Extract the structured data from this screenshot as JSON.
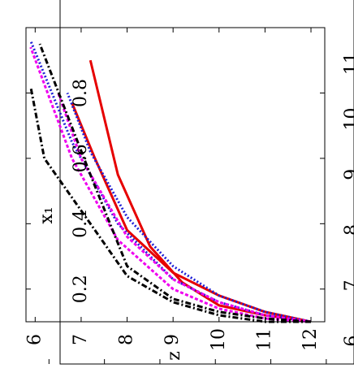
{
  "chart_data": [
    {
      "type": "line",
      "title": "",
      "xlabel": "x₁",
      "ylabel": "z",
      "x_ticks": [
        "0.2",
        "0.4",
        "0.6",
        "0.8"
      ],
      "y_ticks": [
        "6",
        "7",
        "8",
        "9",
        "10",
        "11",
        "12"
      ],
      "xlim": [
        0.1,
        1.0
      ],
      "ylim": [
        5.8,
        12.3
      ],
      "grid": false,
      "series": [
        {
          "color": "#e60000",
          "dash": "solid",
          "points": [
            [
              0.1,
              12.0
            ],
            [
              0.13,
              11.0
            ],
            [
              0.18,
              10.0
            ],
            [
              0.25,
              9.0
            ],
            [
              0.38,
              8.0
            ],
            [
              0.6,
              7.3
            ],
            [
              0.77,
              6.8
            ]
          ]
        },
        {
          "color": "#e60000",
          "dash": "solid",
          "points": [
            [
              0.1,
              12.0
            ],
            [
              0.12,
              11.0
            ],
            [
              0.15,
              10.0
            ],
            [
              0.22,
              9.2
            ],
            [
              0.33,
              8.5
            ],
            [
              0.55,
              7.8
            ],
            [
              0.9,
              7.2
            ]
          ]
        },
        {
          "color": "#1f1fd6",
          "dash": "dotted",
          "points": [
            [
              0.1,
              12.0
            ],
            [
              0.13,
              11.0
            ],
            [
              0.18,
              10.0
            ],
            [
              0.27,
              9.0
            ],
            [
              0.42,
              8.0
            ],
            [
              0.62,
              7.2
            ],
            [
              0.8,
              6.7
            ]
          ]
        },
        {
          "color": "#1f1fd6",
          "dash": "dotted",
          "points": [
            [
              0.1,
              12.0
            ],
            [
              0.12,
              11.0
            ],
            [
              0.16,
              10.0
            ],
            [
              0.23,
              9.0
            ],
            [
              0.4,
              7.8
            ],
            [
              0.65,
              6.8
            ],
            [
              0.96,
              5.9
            ]
          ]
        },
        {
          "color": "#ee00ee",
          "dash": "dashed",
          "points": [
            [
              0.1,
              12.0
            ],
            [
              0.12,
              11.0
            ],
            [
              0.16,
              10.0
            ],
            [
              0.23,
              9.0
            ],
            [
              0.36,
              8.0
            ],
            [
              0.6,
              7.0
            ],
            [
              0.8,
              6.5
            ]
          ]
        },
        {
          "color": "#ee00ee",
          "dash": "dashed",
          "points": [
            [
              0.1,
              12.0
            ],
            [
              0.11,
              11.0
            ],
            [
              0.14,
              10.0
            ],
            [
              0.2,
              9.0
            ],
            [
              0.35,
              7.8
            ],
            [
              0.6,
              6.8
            ],
            [
              0.94,
              5.9
            ]
          ]
        },
        {
          "color": "#000000",
          "dash": "dashdot",
          "points": [
            [
              0.1,
              12.0
            ],
            [
              0.11,
              11.0
            ],
            [
              0.13,
              10.0
            ],
            [
              0.17,
              9.0
            ],
            [
              0.27,
              8.0
            ],
            [
              0.55,
              7.2
            ],
            [
              0.95,
              6.1
            ]
          ]
        },
        {
          "color": "#000000",
          "dash": "dashdot",
          "points": [
            [
              0.1,
              12.0
            ],
            [
              0.1,
              11.0
            ],
            [
              0.12,
              10.0
            ],
            [
              0.16,
              9.0
            ],
            [
              0.24,
              8.0
            ],
            [
              0.4,
              7.2
            ],
            [
              0.6,
              6.2
            ],
            [
              0.82,
              5.9
            ]
          ]
        }
      ]
    },
    {
      "type": "line",
      "title": "",
      "y_ticks": [
        "6",
        "7",
        "8",
        "9",
        "10",
        "11"
      ],
      "xlim": [
        0.12,
        0.9
      ],
      "ylim": [
        6.2,
        11.5
      ],
      "grid": false
    }
  ]
}
